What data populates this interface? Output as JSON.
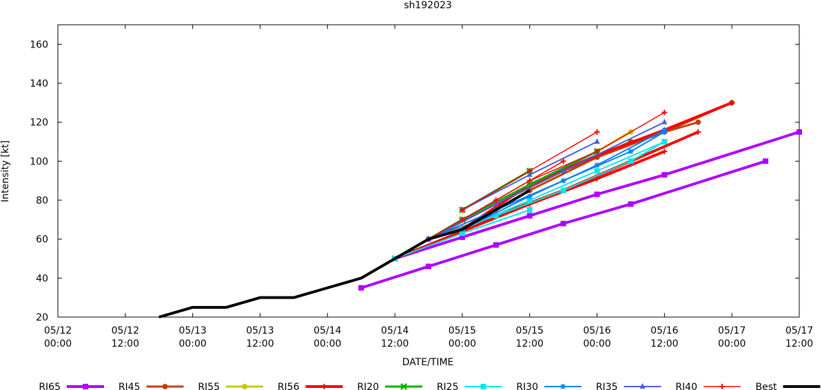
{
  "chart_data": {
    "type": "line",
    "title": "sh192023",
    "xlabel": "DATE/TIME",
    "ylabel": "Intensity [kt]",
    "x_units": "hours since 05/12 00:00",
    "xlim": [
      0,
      132
    ],
    "ylim": [
      20,
      170
    ],
    "yticks": [
      20,
      40,
      60,
      80,
      100,
      120,
      140,
      160
    ],
    "xticks": [
      {
        "t": 0,
        "date": "05/12",
        "time": "00:00"
      },
      {
        "t": 12,
        "date": "05/12",
        "time": "12:00"
      },
      {
        "t": 24,
        "date": "05/13",
        "time": "00:00"
      },
      {
        "t": 36,
        "date": "05/13",
        "time": "12:00"
      },
      {
        "t": 48,
        "date": "05/14",
        "time": "00:00"
      },
      {
        "t": 60,
        "date": "05/14",
        "time": "12:00"
      },
      {
        "t": 72,
        "date": "05/15",
        "time": "00:00"
      },
      {
        "t": 84,
        "date": "05/15",
        "time": "12:00"
      },
      {
        "t": 96,
        "date": "05/16",
        "time": "00:00"
      },
      {
        "t": 108,
        "date": "05/16",
        "time": "12:00"
      },
      {
        "t": 120,
        "date": "05/17",
        "time": "00:00"
      },
      {
        "t": 132,
        "date": "05/17",
        "time": "12:00"
      }
    ],
    "legend_position": "bottom",
    "series": [
      {
        "name": "RI65",
        "color": "#b000ff",
        "width": 4,
        "marker": "square",
        "tracks": [
          [
            [
              54,
              35
            ],
            [
              66,
              46
            ],
            [
              78,
              57
            ],
            [
              90,
              68
            ],
            [
              102,
              78
            ],
            [
              126,
              100
            ]
          ],
          [
            [
              60,
              50
            ],
            [
              72,
              61
            ],
            [
              84,
              72
            ],
            [
              96,
              83
            ],
            [
              108,
              93
            ],
            [
              132,
              115
            ]
          ]
        ]
      },
      {
        "name": "RI45",
        "color": "#c04000",
        "width": 3,
        "marker": "circle",
        "tracks": [
          [
            [
              66,
              60
            ],
            [
              78,
              78
            ],
            [
              90,
              95
            ],
            [
              102,
              110
            ],
            [
              114,
              120
            ]
          ],
          [
            [
              72,
              65
            ],
            [
              84,
              85
            ],
            [
              96,
              102
            ],
            [
              108,
              115
            ],
            [
              120,
              130
            ]
          ]
        ]
      },
      {
        "name": "RI55",
        "color": "#c8c800",
        "width": 3,
        "marker": "circle",
        "tracks": [
          [
            [
              60,
              50
            ],
            [
              72,
              70
            ],
            [
              84,
              88
            ],
            [
              96,
              105
            ],
            [
              102,
              115
            ]
          ]
        ]
      },
      {
        "name": "RI56",
        "color": "#ff0000",
        "width": 4,
        "marker": "plus",
        "tracks": [
          [
            [
              72,
              65
            ],
            [
              84,
              88
            ],
            [
              96,
              103
            ],
            [
              108,
              116
            ],
            [
              120,
              130
            ]
          ],
          [
            [
              66,
              60
            ],
            [
              78,
              72
            ],
            [
              90,
              85
            ],
            [
              102,
              100
            ],
            [
              114,
              115
            ]
          ],
          [
            [
              60,
              50
            ],
            [
              72,
              64
            ],
            [
              84,
              78
            ],
            [
              96,
              91
            ],
            [
              108,
              105
            ]
          ]
        ]
      },
      {
        "name": "RI20",
        "color": "#00b000",
        "width": 3,
        "marker": "x",
        "tracks": [
          [
            [
              72,
              75
            ],
            [
              84,
              95
            ]
          ],
          [
            [
              60,
              50
            ],
            [
              72,
              70
            ],
            [
              84,
              88
            ],
            [
              96,
              105
            ]
          ]
        ]
      },
      {
        "name": "RI25",
        "color": "#00e8e8",
        "width": 2,
        "marker": "square",
        "tracks": [
          [
            [
              60,
              50
            ],
            [
              72,
              63
            ],
            [
              84,
              75
            ]
          ],
          [
            [
              66,
              60
            ],
            [
              78,
              72
            ],
            [
              90,
              85
            ],
            [
              102,
              100
            ],
            [
              108,
              110
            ]
          ],
          [
            [
              72,
              65
            ],
            [
              84,
              80
            ],
            [
              96,
              95
            ],
            [
              108,
              110
            ]
          ]
        ]
      },
      {
        "name": "RI30",
        "color": "#0080ff",
        "width": 2,
        "marker": "star",
        "tracks": [
          [
            [
              66,
              60
            ],
            [
              78,
              75
            ],
            [
              90,
              90
            ],
            [
              102,
              105
            ],
            [
              108,
              115
            ]
          ],
          [
            [
              72,
              65
            ],
            [
              84,
              82
            ],
            [
              96,
              98
            ],
            [
              108,
              116
            ]
          ]
        ]
      },
      {
        "name": "RI35",
        "color": "#4060e0",
        "width": 2,
        "marker": "triangle",
        "tracks": [
          [
            [
              72,
              75
            ],
            [
              84,
              93
            ],
            [
              96,
              110
            ]
          ],
          [
            [
              66,
              60
            ],
            [
              78,
              78
            ],
            [
              90,
              95
            ],
            [
              108,
              120
            ]
          ]
        ]
      },
      {
        "name": "RI40",
        "color": "#ff0000",
        "width": 1.5,
        "marker": "plus",
        "tracks": [
          [
            [
              72,
              75
            ],
            [
              84,
              95
            ],
            [
              96,
              115
            ]
          ],
          [
            [
              66,
              60
            ],
            [
              78,
              80
            ],
            [
              90,
              100
            ]
          ],
          [
            [
              72,
              70
            ],
            [
              84,
              90
            ],
            [
              96,
              105
            ],
            [
              108,
              125
            ]
          ]
        ]
      },
      {
        "name": "Best",
        "color": "#000000",
        "width": 4,
        "marker": "none",
        "tracks": [
          [
            [
              18,
              20
            ],
            [
              24,
              25
            ],
            [
              30,
              25
            ],
            [
              36,
              30
            ],
            [
              42,
              30
            ],
            [
              48,
              35
            ],
            [
              54,
              40
            ],
            [
              60,
              50
            ],
            [
              66,
              60
            ],
            [
              72,
              65
            ],
            [
              78,
              75
            ],
            [
              84,
              85
            ]
          ]
        ]
      }
    ]
  }
}
